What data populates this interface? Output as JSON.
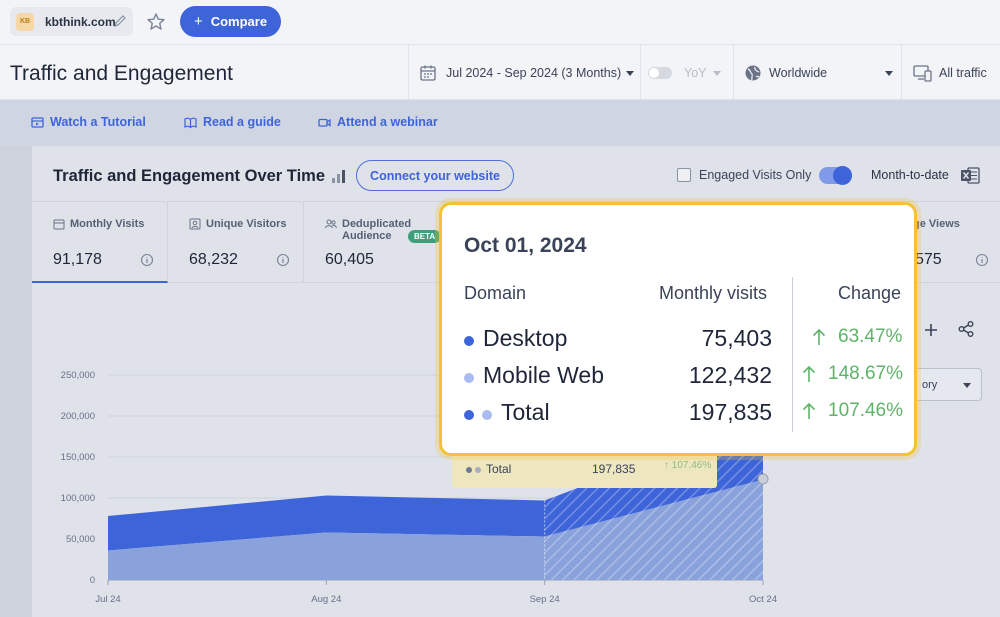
{
  "topbar": {
    "site_logo_text": "KB",
    "site_name": "kbthink.com",
    "compare_label": "Compare"
  },
  "header": {
    "title": "Traffic and Engagement",
    "date_range": "Jul 2024 - Sep 2024 (3 Months)",
    "yoy_label": "YoY",
    "country": "Worldwide",
    "traffic_filter": "All traffic"
  },
  "resources": {
    "tutorial": "Watch a Tutorial",
    "guide": "Read a guide",
    "webinar": "Attend a webinar"
  },
  "card": {
    "title": "Traffic and Engagement Over Time",
    "connect_label": "Connect your website",
    "engaged_label": "Engaged Visits Only",
    "mtd_label": "Month-to-date",
    "group_select_text": "ory"
  },
  "metrics": [
    {
      "label": "Monthly Visits",
      "value": "91,178"
    },
    {
      "label": "Unique Visitors",
      "value": "68,232"
    },
    {
      "label": "Deduplicated Audience",
      "value": "60,405",
      "badge": "BETA"
    },
    {
      "label": "ge Views",
      "value": "575"
    }
  ],
  "mini_tooltip": {
    "label": "Total",
    "value": "197,835",
    "change": "107.46%"
  },
  "tooltip": {
    "date": "Oct 01, 2024",
    "col_domain": "Domain",
    "col_visits": "Monthly visits",
    "col_change": "Change",
    "rows": [
      {
        "domain": "Desktop",
        "visits": "75,403",
        "change": "63.47%"
      },
      {
        "domain": "Mobile Web",
        "visits": "122,432",
        "change": "148.67%"
      },
      {
        "domain": "Total",
        "visits": "197,835",
        "change": "107.46%"
      }
    ]
  },
  "colors": {
    "accent": "#3e64d9",
    "desktop": "#3e64d9",
    "mobile": "#a9bcef",
    "positive": "#5fb36a",
    "highlight": "#f4c430"
  },
  "chart_data": {
    "type": "area",
    "stacked": true,
    "categories": [
      "Jul 24",
      "Aug 24",
      "Sep 24",
      "Oct 24"
    ],
    "series": [
      {
        "name": "Mobile Web",
        "values": [
          36000,
          58000,
          53000,
          122432
        ]
      },
      {
        "name": "Desktop",
        "values": [
          42000,
          45000,
          44000,
          75403
        ]
      }
    ],
    "yticks": [
      "0",
      "50,000",
      "100,000",
      "150,000",
      "200,000",
      "250,000"
    ],
    "ylim": [
      0,
      250000
    ],
    "grid": true
  }
}
